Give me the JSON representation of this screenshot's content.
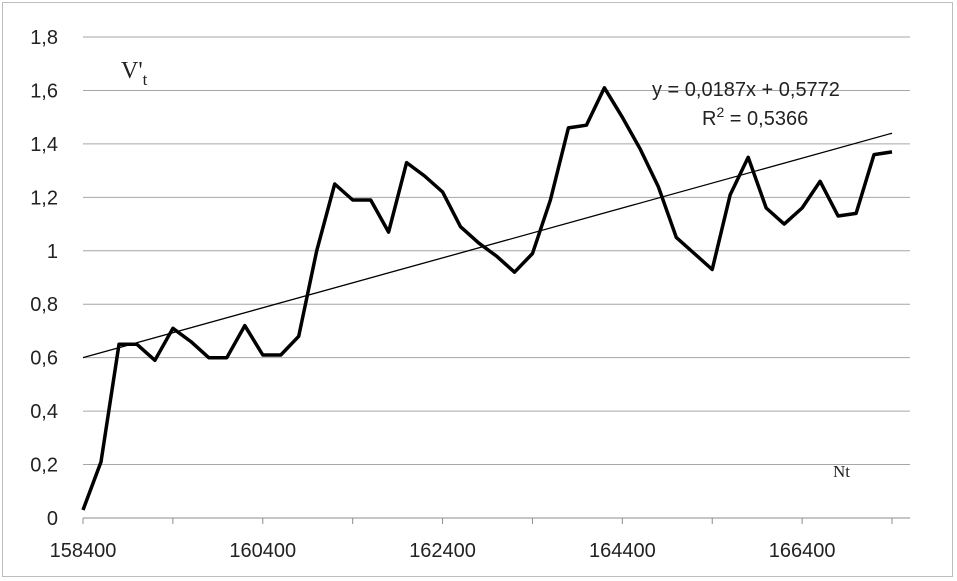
{
  "chart_data": {
    "type": "line",
    "ylabel_main": "V'",
    "ylabel_sub": "t",
    "xlabel": "Nt",
    "xlim": [
      158400,
      167600
    ],
    "ylim": [
      0,
      1.8
    ],
    "x_tick_labels": [
      "158400",
      "160400",
      "162400",
      "164400",
      "166400"
    ],
    "y_tick_labels": [
      "0",
      "0,2",
      "0,4",
      "0,6",
      "0,8",
      "1",
      "1,2",
      "1,4",
      "1,6",
      "1,8"
    ],
    "grid": "horizontal",
    "series": [
      {
        "x": [
          158400,
          158600,
          158800,
          159000,
          159200,
          159400,
          159600,
          159800,
          160000,
          160200,
          160400,
          160600,
          160800,
          161000,
          161200,
          161400,
          161600,
          161800,
          162000,
          162200,
          162400,
          162600,
          162800,
          163000,
          163200,
          163400,
          163600,
          163800,
          164000,
          164200,
          164400,
          164600,
          164800,
          165000,
          165200,
          165400,
          165600,
          165800,
          166000,
          166200,
          166400,
          166600,
          166800,
          167000,
          167200,
          167400
        ],
        "values": [
          0.03,
          0.21,
          0.65,
          0.65,
          0.59,
          0.71,
          0.66,
          0.6,
          0.6,
          0.72,
          0.61,
          0.61,
          0.68,
          1.0,
          1.25,
          1.19,
          1.19,
          1.07,
          1.33,
          1.28,
          1.22,
          1.09,
          1.03,
          0.98,
          0.92,
          0.99,
          1.19,
          1.46,
          1.47,
          1.61,
          1.5,
          1.38,
          1.24,
          1.05,
          0.99,
          0.93,
          1.21,
          1.35,
          1.16,
          1.1,
          1.16,
          1.26,
          1.13,
          1.14,
          1.36,
          1.37
        ]
      }
    ],
    "trendline": {
      "equation": "y = 0,0187x + 0,5772",
      "r2_prefix": "R",
      "r2_sup": "2",
      "r2_suffix": " = 0,5366",
      "start": [
        158400,
        0.6
      ],
      "end": [
        167400,
        1.44
      ]
    }
  }
}
